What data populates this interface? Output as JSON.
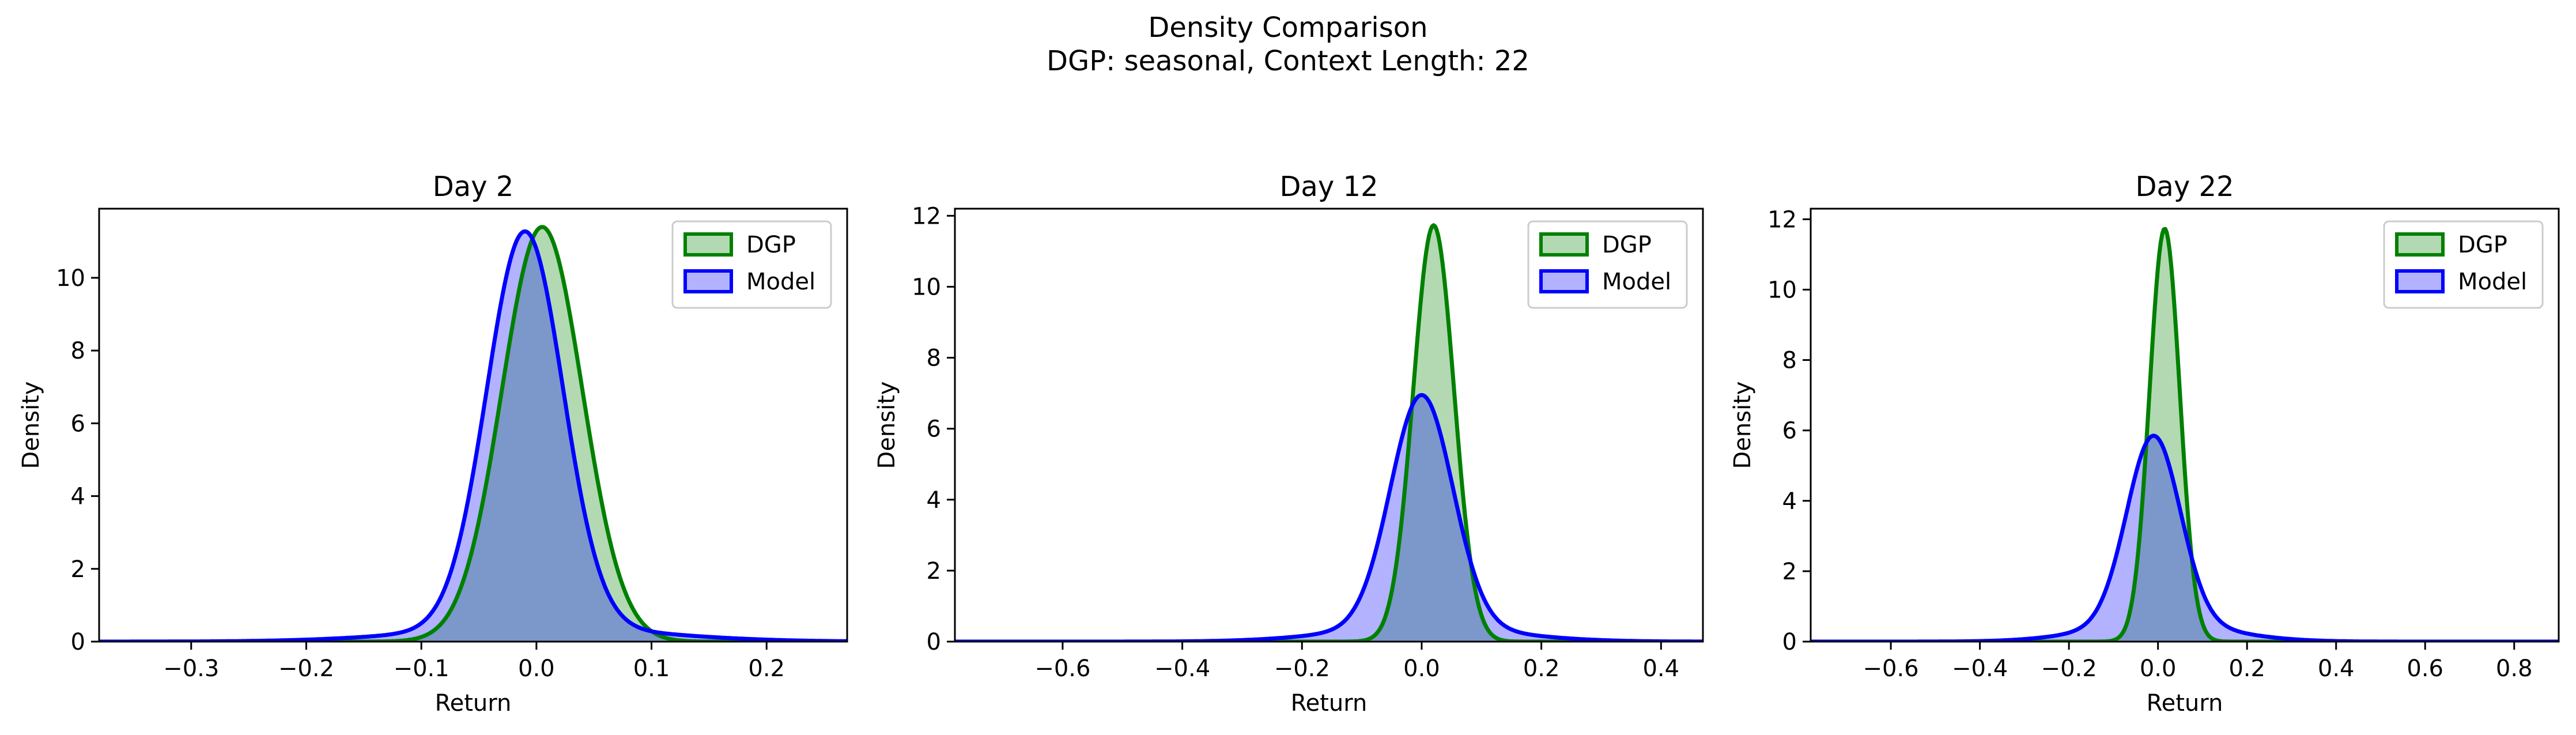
{
  "figure": {
    "title_line1": "Density Comparison",
    "title_line2": "DGP: seasonal, Context Length: 22"
  },
  "colors": {
    "dgp": "#008000",
    "dgp_fill": "#008000",
    "model": "#0000ff",
    "model_fill": "#0000ff"
  },
  "chart_data": [
    {
      "type": "area",
      "title": "Day 2",
      "xlabel": "Return",
      "ylabel": "Density",
      "xlim": [
        -0.38,
        0.27
      ],
      "ylim": [
        0,
        11.9
      ],
      "xticks": [
        -0.3,
        -0.2,
        -0.1,
        0.0,
        0.1,
        0.2
      ],
      "xtick_labels": [
        "−0.3",
        "−0.2",
        "−0.1",
        "0.0",
        "0.1",
        "0.2"
      ],
      "yticks": [
        0,
        2,
        4,
        6,
        8,
        10
      ],
      "ytick_labels": [
        "0",
        "2",
        "4",
        "6",
        "8",
        "10"
      ],
      "legend": "top-right",
      "series": [
        {
          "name": "DGP",
          "components": [
            {
              "w": 1.0,
              "mu": 0.005,
              "sigma": 0.035
            }
          ]
        },
        {
          "name": "Model",
          "components": [
            {
              "w": 0.9,
              "mu": -0.01,
              "sigma": 0.033
            },
            {
              "w": 0.1,
              "mu": 0.0,
              "sigma": 0.1
            }
          ]
        }
      ]
    },
    {
      "type": "area",
      "title": "Day 12",
      "xlabel": "Return",
      "ylabel": "Density",
      "xlim": [
        -0.78,
        0.47
      ],
      "ylim": [
        0,
        12.2
      ],
      "xticks": [
        -0.6,
        -0.4,
        -0.2,
        0.0,
        0.2,
        0.4
      ],
      "xtick_labels": [
        "−0.6",
        "−0.4",
        "−0.2",
        "0.0",
        "0.2",
        "0.4"
      ],
      "yticks": [
        0,
        2,
        4,
        6,
        8,
        10,
        12
      ],
      "ytick_labels": [
        "0",
        "2",
        "4",
        "6",
        "8",
        "10",
        "12"
      ],
      "legend": "top-right",
      "series": [
        {
          "name": "DGP",
          "components": [
            {
              "w": 1.0,
              "mu": 0.02,
              "sigma": 0.034
            }
          ]
        },
        {
          "name": "Model",
          "components": [
            {
              "w": 0.85,
              "mu": 0.0,
              "sigma": 0.052
            },
            {
              "w": 0.15,
              "mu": 0.0,
              "sigma": 0.14
            }
          ]
        }
      ]
    },
    {
      "type": "area",
      "title": "Day 22",
      "xlabel": "Return",
      "ylabel": "Density",
      "xlim": [
        -0.78,
        0.9
      ],
      "ylim": [
        0,
        12.3
      ],
      "xticks": [
        -0.6,
        -0.4,
        -0.2,
        0.0,
        0.2,
        0.4,
        0.6,
        0.8
      ],
      "xtick_labels": [
        "−0.6",
        "−0.4",
        "−0.2",
        "0.0",
        "0.2",
        "0.4",
        "0.6",
        "0.8"
      ],
      "yticks": [
        0,
        2,
        4,
        6,
        8,
        10,
        12
      ],
      "ytick_labels": [
        "0",
        "2",
        "4",
        "6",
        "8",
        "10",
        "12"
      ],
      "legend": "top-right",
      "series": [
        {
          "name": "DGP",
          "components": [
            {
              "w": 1.0,
              "mu": 0.015,
              "sigma": 0.034
            }
          ]
        },
        {
          "name": "Model",
          "components": [
            {
              "w": 0.8,
              "mu": -0.01,
              "sigma": 0.06
            },
            {
              "w": 0.2,
              "mu": 0.0,
              "sigma": 0.15
            }
          ]
        }
      ]
    }
  ]
}
